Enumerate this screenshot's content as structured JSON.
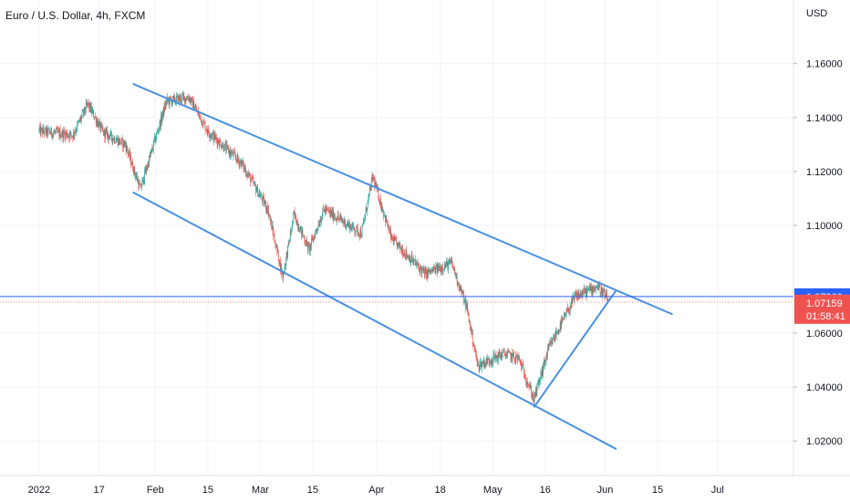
{
  "chart_data": {
    "type": "candlestick",
    "title": "Euro / U.S. Dollar, 4h, FXCM",
    "currency": "USD",
    "x_ticks": [
      "2022",
      "17",
      "Feb",
      "15",
      "Mar",
      "15",
      "Apr",
      "18",
      "May",
      "16",
      "Jun",
      "15",
      "Jul"
    ],
    "y_ticks": [
      "1.16000",
      "1.14000",
      "1.12000",
      "1.10000",
      "1.06000",
      "1.04000",
      "1.02000"
    ],
    "ylim": [
      1.0072,
      1.1836
    ],
    "price_path": [
      [
        "2022-01-01",
        1.135
      ],
      [
        "2022-01-10",
        1.1335
      ],
      [
        "2022-01-14",
        1.145
      ],
      [
        "2022-01-18",
        1.1345
      ],
      [
        "2022-01-24",
        1.13
      ],
      [
        "2022-01-28",
        1.1135
      ],
      [
        "2022-02-04",
        1.146
      ],
      [
        "2022-02-10",
        1.1475
      ],
      [
        "2022-02-15",
        1.135
      ],
      [
        "2022-02-24",
        1.123
      ],
      [
        "2022-03-03",
        1.106
      ],
      [
        "2022-03-07",
        1.081
      ],
      [
        "2022-03-10",
        1.104
      ],
      [
        "2022-03-14",
        1.091
      ],
      [
        "2022-03-18",
        1.106
      ],
      [
        "2022-03-28",
        1.097
      ],
      [
        "2022-03-31",
        1.118
      ],
      [
        "2022-04-05",
        1.095
      ],
      [
        "2022-04-14",
        1.082
      ],
      [
        "2022-04-21",
        1.086
      ],
      [
        "2022-04-25",
        1.07
      ],
      [
        "2022-04-28",
        1.048
      ],
      [
        "2022-05-05",
        1.0525
      ],
      [
        "2022-05-09",
        1.0505
      ],
      [
        "2022-05-13",
        1.0355
      ],
      [
        "2022-05-17",
        1.0545
      ],
      [
        "2022-05-24",
        1.0735
      ],
      [
        "2022-05-30",
        1.0775
      ],
      [
        "2022-06-02",
        1.0716
      ]
    ],
    "trendlines": [
      {
        "from": [
          "2022-01-26",
          1.1525
        ],
        "to": [
          "2022-06-19",
          1.067
        ]
      },
      {
        "from": [
          "2022-01-26",
          1.1123
        ],
        "to": [
          "2022-06-04",
          1.017
        ]
      },
      {
        "from": [
          "2022-05-13",
          1.0325
        ],
        "to": [
          "2022-06-04",
          1.076
        ]
      }
    ],
    "horizontal_line": 1.0736,
    "price_labels": {
      "line_price": "1.07360",
      "last_price": "1.07159",
      "countdown": "01:58:41"
    },
    "colors": {
      "up": "#26a69a",
      "down": "#ef5350",
      "trendline": "#4a90e2",
      "hline": "#2962ff",
      "last_price_badge": "#ef5350",
      "line_badge": "#2962ff"
    }
  }
}
